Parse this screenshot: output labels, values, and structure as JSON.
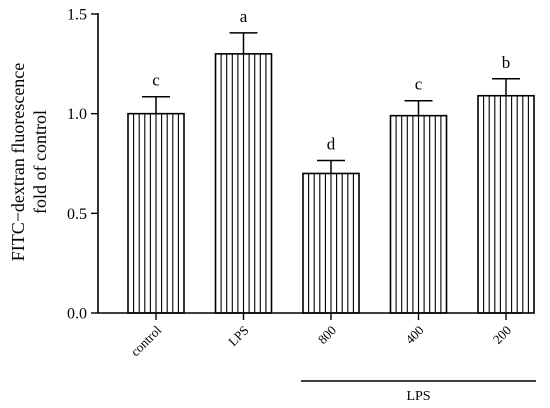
{
  "chart_data": {
    "type": "bar",
    "categories": [
      "control",
      "LPS",
      "800",
      "400",
      "200"
    ],
    "values": [
      1.0,
      1.3,
      0.7,
      0.99,
      1.09
    ],
    "errors": [
      0.085,
      0.105,
      0.065,
      0.075,
      0.085
    ],
    "significance_labels": [
      "c",
      "a",
      "d",
      "c",
      "b"
    ],
    "ylabel_lines": [
      "FITC−dextran fluorescence",
      "fold of control"
    ],
    "xlabel": "",
    "ylim": [
      0,
      1.5
    ],
    "yticks": [
      0.0,
      0.5,
      1.0,
      1.5
    ],
    "ytick_labels": [
      "0.0",
      "0.5",
      "1.0",
      "1.5"
    ],
    "group_bracket": {
      "label": "LPS",
      "from_category": "800",
      "to_category": "200"
    },
    "grid": false,
    "bar_fill": "#ffffff",
    "bar_pattern": "vertical-stripes",
    "bar_stroke": "#000000"
  }
}
